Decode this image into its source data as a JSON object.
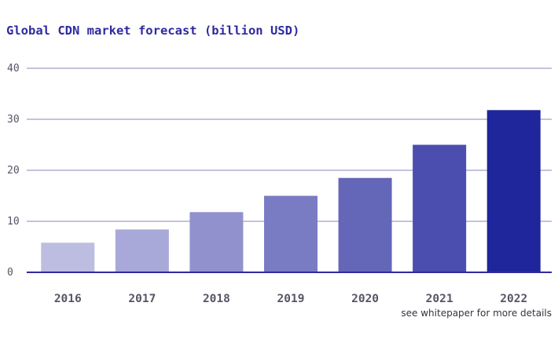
{
  "chart_data": {
    "type": "bar",
    "title": "Global CDN market forecast (billion USD)",
    "note": "see whitepaper for more details",
    "categories": [
      "2016",
      "2017",
      "2018",
      "2019",
      "2020",
      "2021",
      "2022"
    ],
    "values": [
      5.8,
      8.4,
      11.8,
      15.0,
      18.5,
      25.0,
      31.8
    ],
    "colors": [
      "#bcbde0",
      "#a8a9d8",
      "#9192cd",
      "#7a7cc3",
      "#6466b8",
      "#4b4daf",
      "#1f259a"
    ],
    "ylim": [
      0,
      40
    ],
    "yticks": [
      0,
      10,
      20,
      30,
      40
    ],
    "xlabel": "",
    "ylabel": "",
    "grid": true,
    "legend": "none"
  }
}
